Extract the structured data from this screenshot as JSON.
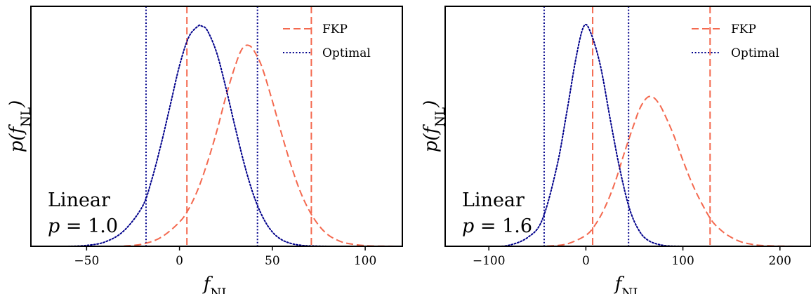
{
  "chart_data": [
    {
      "type": "line",
      "xlabel": "f_NL",
      "ylabel": "p(f_NL)",
      "xlim": [
        -80,
        120
      ],
      "ylim": [
        0,
        1.09
      ],
      "xticks": [
        -50,
        0,
        50,
        100
      ],
      "xtick_labels": [
        "−50",
        "0",
        "50",
        "100"
      ],
      "legend_position": "top-right",
      "annotation": [
        "Linear",
        "p = 1.0"
      ],
      "series": [
        {
          "name": "FKP",
          "style": "dashed",
          "color": "#f4694f",
          "x": [
            -30,
            -20,
            -10,
            0,
            5,
            10,
            15,
            20,
            25,
            30,
            34,
            38,
            42,
            45,
            50,
            55,
            60,
            65,
            70,
            75,
            80,
            85,
            90,
            100,
            110,
            120
          ],
          "y": [
            0.001,
            0.01,
            0.04,
            0.11,
            0.17,
            0.26,
            0.38,
            0.52,
            0.68,
            0.82,
            0.9,
            0.91,
            0.86,
            0.8,
            0.66,
            0.51,
            0.37,
            0.25,
            0.16,
            0.095,
            0.052,
            0.028,
            0.014,
            0.003,
            0.0005,
            0.0001
          ],
          "interval": [
            4,
            71
          ]
        },
        {
          "name": "Optimal",
          "style": "dotted",
          "color": "#00008b",
          "x": [
            -60,
            -50,
            -40,
            -30,
            -20,
            -15,
            -10,
            -5,
            0,
            5,
            10,
            12,
            15,
            20,
            25,
            30,
            35,
            40,
            45,
            50,
            55,
            60,
            65,
            70,
            80
          ],
          "y": [
            0.0,
            0.004,
            0.02,
            0.07,
            0.18,
            0.3,
            0.46,
            0.64,
            0.82,
            0.95,
            1.0,
            1.0,
            0.98,
            0.88,
            0.72,
            0.54,
            0.37,
            0.23,
            0.13,
            0.065,
            0.03,
            0.013,
            0.005,
            0.002,
            0.0
          ]
        }
      ],
      "vlines": [
        {
          "series": "Optimal",
          "x": [
            -18,
            42
          ]
        }
      ]
    },
    {
      "type": "line",
      "xlabel": "f_NL",
      "ylabel": "p(f_NL)",
      "xlim": [
        -145,
        232
      ],
      "ylim": [
        0,
        1.09
      ],
      "xticks": [
        -100,
        0,
        100,
        200
      ],
      "xtick_labels": [
        "−100",
        "0",
        "100",
        "200"
      ],
      "legend_position": "top-right",
      "annotation": [
        "Linear",
        "p = 1.6"
      ],
      "series": [
        {
          "name": "FKP",
          "style": "dashed",
          "color": "#f4694f",
          "x": [
            -40,
            -20,
            0,
            10,
            20,
            30,
            40,
            50,
            55,
            60,
            65,
            70,
            75,
            80,
            90,
            100,
            110,
            120,
            130,
            140,
            150,
            160,
            170,
            180,
            200,
            220,
            232
          ],
          "y": [
            0.001,
            0.01,
            0.05,
            0.1,
            0.18,
            0.29,
            0.43,
            0.56,
            0.62,
            0.66,
            0.68,
            0.675,
            0.65,
            0.61,
            0.51,
            0.39,
            0.28,
            0.19,
            0.115,
            0.07,
            0.04,
            0.02,
            0.01,
            0.004,
            0.001,
            0.0001,
            0.0
          ],
          "interval": [
            7,
            128
          ]
        },
        {
          "name": "Optimal",
          "style": "dotted",
          "color": "#00008b",
          "x": [
            -100,
            -80,
            -60,
            -45,
            -30,
            -20,
            -10,
            -2,
            5,
            15,
            25,
            35,
            45,
            55,
            65,
            80,
            100
          ],
          "y": [
            0.0,
            0.004,
            0.04,
            0.12,
            0.36,
            0.6,
            0.86,
            1.0,
            0.97,
            0.82,
            0.58,
            0.35,
            0.17,
            0.07,
            0.025,
            0.004,
            0.0
          ]
        }
      ],
      "vlines": [
        {
          "series": "Optimal",
          "x": [
            -43,
            44
          ]
        }
      ]
    }
  ]
}
